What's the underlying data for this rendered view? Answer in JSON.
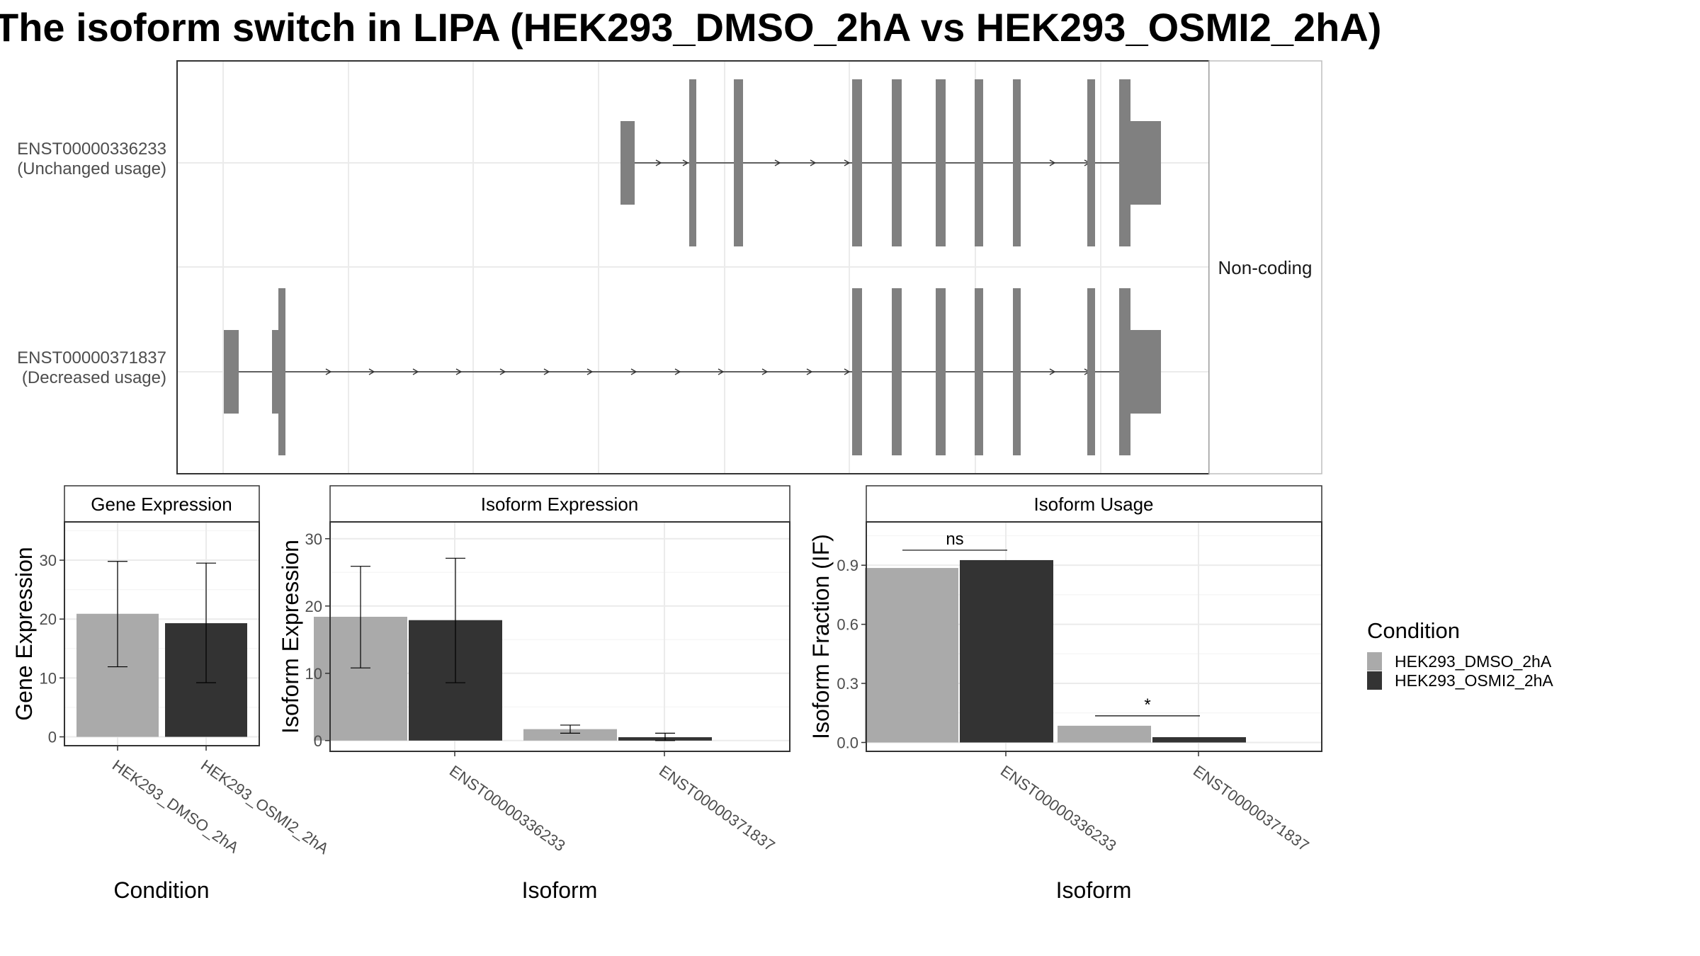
{
  "title": "The isoform switch in LIPA (HEK293_DMSO_2hA vs HEK293_OSMI2_2hA)",
  "colors": {
    "HEK293_DMSO_2hA": "#aaaaaa",
    "HEK293_OSMI2_2hA": "#333333",
    "exon": "#808080",
    "grid": "#ebebeb",
    "panel_border": "#333333",
    "strip_fill": "#ffffff"
  },
  "legend": {
    "title": "Condition",
    "items": [
      "HEK293_DMSO_2hA",
      "HEK293_OSMI2_2hA"
    ],
    "position": "right"
  },
  "structure": {
    "side_label": "Non-coding",
    "transcripts": [
      {
        "id": "ENST00000336233",
        "usage": "(Unchanged usage)"
      },
      {
        "id": "ENST00000371837",
        "usage": "(Decreased usage)"
      }
    ]
  },
  "chart_data": [
    {
      "type": "bar",
      "title": "Gene Expression",
      "xlabel": "Condition",
      "ylabel": "Gene Expression",
      "categories": [
        "HEK293_DMSO_2hA",
        "HEK293_OSMI2_2hA"
      ],
      "values": [
        20.9,
        19.3
      ],
      "error_low": [
        11.9,
        9.2
      ],
      "error_high": [
        29.8,
        29.5
      ],
      "ylim": [
        -1.5,
        36.5
      ],
      "yticks": [
        0,
        10,
        20,
        30
      ],
      "ytick_labels": [
        "0",
        "10",
        "20",
        "30"
      ],
      "grid": true
    },
    {
      "type": "bar",
      "title": "Isoform Expression",
      "xlabel": "Isoform",
      "ylabel": "Isoform Expression",
      "categories": [
        "ENST00000336233",
        "ENST00000371837"
      ],
      "series": [
        {
          "name": "HEK293_DMSO_2hA",
          "values": [
            18.4,
            1.7
          ],
          "error_low": [
            10.8,
            1.1
          ],
          "error_high": [
            25.9,
            2.3
          ]
        },
        {
          "name": "HEK293_OSMI2_2hA",
          "values": [
            17.9,
            0.5
          ],
          "error_low": [
            8.6,
            0.0
          ],
          "error_high": [
            27.1,
            1.1
          ]
        }
      ],
      "ylim": [
        -1.6,
        32.5
      ],
      "yticks": [
        0,
        10,
        20,
        30
      ],
      "ytick_labels": [
        "0",
        "10",
        "20",
        "30"
      ],
      "grid": true
    },
    {
      "type": "bar",
      "title": "Isoform Usage",
      "xlabel": "Isoform",
      "ylabel": "Isoform Fraction (IF)",
      "categories": [
        "ENST00000336233",
        "ENST00000371837"
      ],
      "series": [
        {
          "name": "HEK293_DMSO_2hA",
          "values": [
            0.886,
            0.085
          ]
        },
        {
          "name": "HEK293_OSMI2_2hA",
          "values": [
            0.926,
            0.027
          ]
        }
      ],
      "significance": [
        "ns",
        "*"
      ],
      "ylim": [
        -0.045,
        1.12
      ],
      "yticks": [
        0,
        0.3,
        0.6,
        0.9
      ],
      "ytick_labels": [
        "0.0",
        "0.3",
        "0.6",
        "0.9"
      ],
      "grid": true
    }
  ]
}
